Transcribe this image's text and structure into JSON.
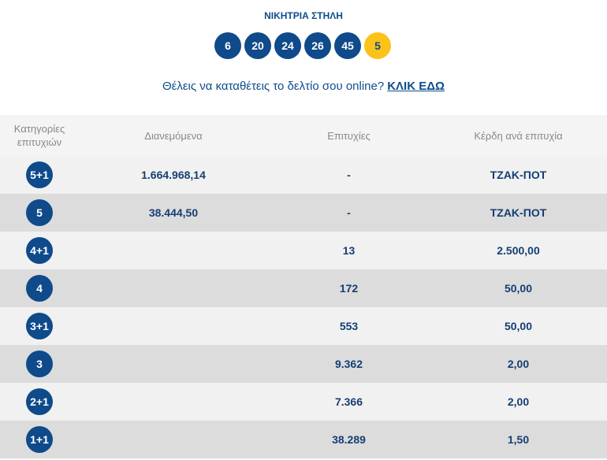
{
  "title": "ΝΙΚΗΤΡΙΑ ΣΤΗΛΗ",
  "numbers": [
    "6",
    "20",
    "24",
    "26",
    "45"
  ],
  "joker": "5",
  "promo": {
    "text": "Θέλεις να καταθέτεις το δελτίο σου online?",
    "link": "ΚΛΙΚ ΕΔΩ"
  },
  "colors": {
    "primary": "#0f4a8a",
    "joker": "#fbc31a"
  },
  "headers": [
    "Κατηγορίες επιτυχιών",
    "Διανεμόμενα",
    "Επιτυχίες",
    "Κέρδη ανά επιτυχία"
  ],
  "rows": [
    {
      "cat": "5+1",
      "pool": "1.664.968,14",
      "winners": "-",
      "prize": "ΤΖΑΚ-ΠΟΤ"
    },
    {
      "cat": "5",
      "pool": "38.444,50",
      "winners": "-",
      "prize": "ΤΖΑΚ-ΠΟΤ"
    },
    {
      "cat": "4+1",
      "pool": "",
      "winners": "13",
      "prize": "2.500,00"
    },
    {
      "cat": "4",
      "pool": "",
      "winners": "172",
      "prize": "50,00"
    },
    {
      "cat": "3+1",
      "pool": "",
      "winners": "553",
      "prize": "50,00"
    },
    {
      "cat": "3",
      "pool": "",
      "winners": "9.362",
      "prize": "2,00"
    },
    {
      "cat": "2+1",
      "pool": "",
      "winners": "7.366",
      "prize": "2,00"
    },
    {
      "cat": "1+1",
      "pool": "",
      "winners": "38.289",
      "prize": "1,50"
    }
  ]
}
